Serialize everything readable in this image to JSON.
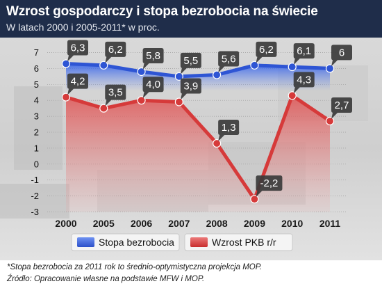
{
  "header": {
    "title": "Wzrost gospodarczy i stopa bezrobocia na świecie",
    "subtitle": "W latach 2000 i 2005-2011* w proc."
  },
  "chart_data": {
    "type": "line",
    "categories": [
      "2000",
      "2005",
      "2006",
      "2007",
      "2008",
      "2009",
      "2010",
      "2011"
    ],
    "series": [
      {
        "name": "Stopa bezrobocia",
        "values": [
          6.3,
          6.2,
          5.8,
          5.5,
          5.6,
          6.2,
          6.1,
          6
        ],
        "labels": [
          "6,3",
          "6,2",
          "5,8",
          "5,5",
          "5,6",
          "6,2",
          "6,1",
          "6"
        ],
        "color": "#2e55d4"
      },
      {
        "name": "Wzrost PKB r/r",
        "values": [
          4.2,
          3.5,
          4.0,
          3.9,
          1.3,
          -2.2,
          4.3,
          2.7
        ],
        "labels": [
          "4,2",
          "3,5",
          "4,0",
          "3,9",
          "1,3",
          "-2,2",
          "4,3",
          "2,7"
        ],
        "color": "#d63a3a"
      }
    ],
    "ylim": [
      -3,
      7
    ],
    "yticks": [
      7,
      6,
      5,
      4,
      3,
      2,
      1,
      0,
      -1,
      -2,
      -3
    ],
    "ytick_labels": [
      "7",
      "6",
      "5",
      "4",
      "3",
      "2",
      "1",
      "0",
      "-1",
      "-2",
      "-3"
    ],
    "legend_position": "bottom-center",
    "grid": true
  },
  "footnotes": {
    "note": "*Stopa bezrobocia za 2011 rok to średnio-optymistyczna projekcja MOP.",
    "source": "Źródło: Opracowanie własne na podstawie MFW i MOP."
  }
}
